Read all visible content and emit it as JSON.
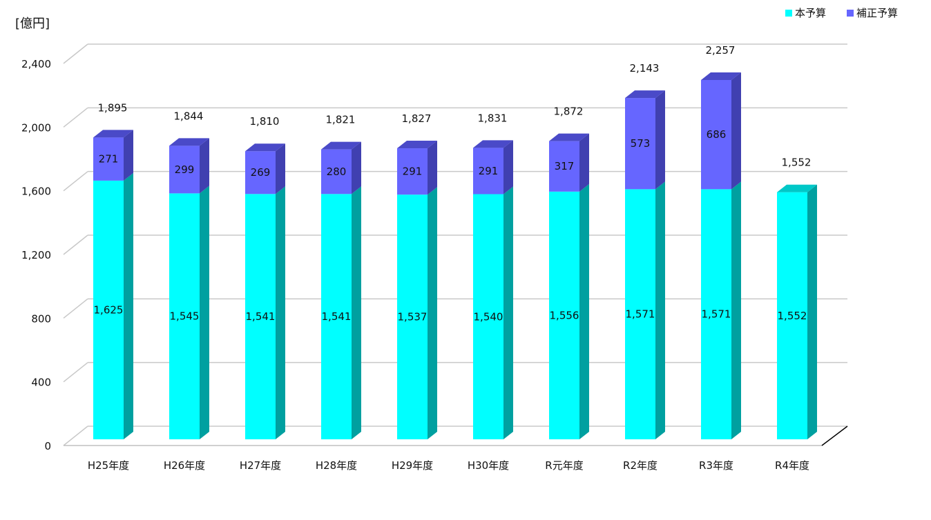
{
  "chart_data": {
    "type": "bar",
    "stacked": true,
    "three_d": true,
    "unit_label": "[億円]",
    "categories": [
      "H25年度",
      "H26年度",
      "H27年度",
      "H28年度",
      "H29年度",
      "H30年度",
      "R元年度",
      "R2年度",
      "R3年度",
      "R4年度"
    ],
    "series": [
      {
        "name": "本予算",
        "color": "#00ffff",
        "side_color": "#00a0a0",
        "top_color": "#00c8c8",
        "values": [
          1625,
          1545,
          1541,
          1541,
          1537,
          1540,
          1556,
          1571,
          1571,
          1552
        ]
      },
      {
        "name": "補正予算",
        "color": "#6666ff",
        "side_color": "#4040b0",
        "top_color": "#4a4ac8",
        "values": [
          271,
          299,
          269,
          280,
          291,
          291,
          317,
          573,
          686,
          null
        ]
      }
    ],
    "segment_labels": {
      "本予算": [
        "1,625",
        "1,545",
        "1,541",
        "1,541",
        "1,537",
        "1,540",
        "1,556",
        "1,571",
        "1,571",
        "1,552"
      ],
      "補正予算": [
        "271",
        "299",
        "269",
        "280",
        "291",
        "291",
        "317",
        "573",
        "686",
        ""
      ]
    },
    "totals": [
      1895,
      1844,
      1810,
      1821,
      1827,
      1831,
      1872,
      2143,
      2257,
      1552
    ],
    "total_labels": [
      "1,895",
      "1,844",
      "1,810",
      "1,821",
      "1,827",
      "1,831",
      "1,872",
      "2,143",
      "2,257",
      "1,552"
    ],
    "y_ticks": [
      0,
      400,
      800,
      1200,
      1600,
      2000,
      2400
    ],
    "y_tick_labels": [
      "0",
      "400",
      "800",
      "1,200",
      "1,600",
      "2,000",
      "2,400"
    ],
    "ylim": [
      0,
      2400
    ],
    "grid": true,
    "legend_position": "top-right"
  }
}
